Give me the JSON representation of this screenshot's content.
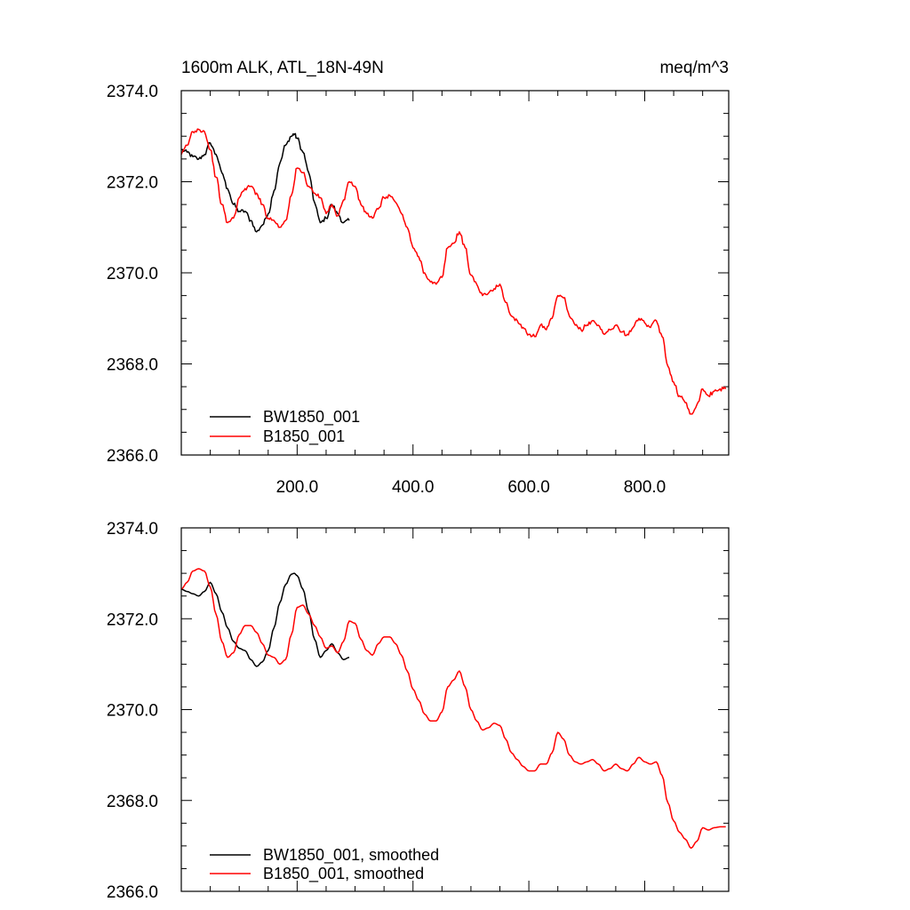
{
  "chart_data": [
    {
      "type": "line",
      "title": "1600m ALK, ATL_18N-49N",
      "units": "meq/m^3",
      "xlim": [
        0,
        945
      ],
      "ylim": [
        2366.0,
        2374.0
      ],
      "xticks": [
        200,
        400,
        600,
        800
      ],
      "xtick_labels": [
        "200.0",
        "400.0",
        "600.0",
        "800.0"
      ],
      "yticks": [
        2366,
        2368,
        2370,
        2372,
        2374
      ],
      "ytick_labels": [
        "2366.0",
        "2368.0",
        "2370.0",
        "2372.0",
        "2374.0"
      ],
      "show_x_labels": true,
      "noise": true,
      "legend_position": "bottom-left",
      "series": [
        {
          "name": "BW1850_001",
          "color": "#000000",
          "x": [
            0,
            10,
            20,
            30,
            40,
            50,
            60,
            70,
            80,
            90,
            100,
            110,
            120,
            130,
            140,
            150,
            160,
            170,
            180,
            190,
            195,
            200,
            210,
            220,
            230,
            240,
            250,
            260,
            270,
            280,
            290
          ],
          "values": [
            2372.7,
            2372.65,
            2372.55,
            2372.5,
            2372.6,
            2372.85,
            2372.6,
            2372.2,
            2371.85,
            2371.5,
            2371.35,
            2371.35,
            2371.15,
            2370.9,
            2371.05,
            2371.3,
            2371.8,
            2372.4,
            2372.8,
            2373.0,
            2373.05,
            2372.95,
            2372.65,
            2372.2,
            2371.55,
            2371.1,
            2371.2,
            2371.5,
            2371.3,
            2371.1,
            2371.15
          ]
        },
        {
          "name": "B1850_001",
          "color": "#ff0000",
          "x": [
            0,
            10,
            20,
            30,
            40,
            50,
            60,
            70,
            80,
            90,
            100,
            110,
            120,
            130,
            140,
            150,
            160,
            170,
            180,
            190,
            200,
            210,
            220,
            230,
            240,
            250,
            260,
            270,
            280,
            290,
            300,
            310,
            320,
            330,
            340,
            350,
            360,
            370,
            380,
            390,
            400,
            410,
            420,
            430,
            440,
            450,
            460,
            470,
            480,
            490,
            500,
            510,
            520,
            530,
            540,
            550,
            560,
            570,
            580,
            590,
            600,
            610,
            620,
            630,
            640,
            650,
            660,
            670,
            680,
            690,
            700,
            710,
            720,
            730,
            740,
            750,
            760,
            770,
            780,
            790,
            800,
            810,
            820,
            830,
            840,
            850,
            860,
            870,
            880,
            890,
            900,
            910,
            920,
            930,
            940
          ],
          "values": [
            2372.6,
            2372.8,
            2373.1,
            2373.15,
            2373.1,
            2372.7,
            2372.1,
            2371.5,
            2371.1,
            2371.2,
            2371.65,
            2371.85,
            2371.9,
            2371.75,
            2371.5,
            2371.2,
            2371.15,
            2371.0,
            2371.15,
            2371.7,
            2372.3,
            2372.2,
            2371.9,
            2371.75,
            2371.65,
            2371.3,
            2371.5,
            2371.25,
            2371.6,
            2372.0,
            2371.9,
            2371.5,
            2371.3,
            2371.2,
            2371.4,
            2371.65,
            2371.7,
            2371.55,
            2371.3,
            2371.0,
            2370.55,
            2370.35,
            2370.0,
            2369.8,
            2369.75,
            2369.9,
            2370.55,
            2370.65,
            2370.9,
            2370.55,
            2369.95,
            2369.75,
            2369.5,
            2369.55,
            2369.65,
            2369.75,
            2369.35,
            2369.05,
            2368.95,
            2368.8,
            2368.65,
            2368.6,
            2368.85,
            2368.75,
            2369.0,
            2369.5,
            2369.45,
            2369.05,
            2368.85,
            2368.75,
            2368.85,
            2368.95,
            2368.85,
            2368.65,
            2368.75,
            2368.85,
            2368.7,
            2368.65,
            2368.8,
            2369.0,
            2368.9,
            2368.8,
            2368.95,
            2368.6,
            2367.95,
            2367.6,
            2367.3,
            2367.15,
            2366.9,
            2367.1,
            2367.45,
            2367.3,
            2367.4,
            2367.45,
            2367.45
          ]
        }
      ]
    },
    {
      "type": "line",
      "title": "",
      "xlim": [
        0,
        945
      ],
      "ylim": [
        2366.0,
        2374.0
      ],
      "xticks": [
        200,
        400,
        600,
        800
      ],
      "xtick_labels": [],
      "yticks": [
        2366,
        2368,
        2370,
        2372,
        2374
      ],
      "ytick_labels": [
        "2366.0",
        "2368.0",
        "2370.0",
        "2372.0",
        "2374.0"
      ],
      "show_x_labels": false,
      "noise": false,
      "legend_position": "bottom-left",
      "series": [
        {
          "name": "BW1850_001, smoothed",
          "color": "#000000",
          "x": [
            0,
            10,
            20,
            30,
            40,
            50,
            60,
            70,
            80,
            90,
            100,
            110,
            120,
            130,
            140,
            150,
            160,
            170,
            180,
            190,
            195,
            200,
            210,
            220,
            230,
            240,
            250,
            260,
            270,
            280,
            290
          ],
          "values": [
            2372.65,
            2372.6,
            2372.55,
            2372.5,
            2372.6,
            2372.8,
            2372.55,
            2372.15,
            2371.8,
            2371.5,
            2371.35,
            2371.3,
            2371.1,
            2370.95,
            2371.05,
            2371.3,
            2371.8,
            2372.35,
            2372.75,
            2372.98,
            2373.0,
            2372.95,
            2372.65,
            2372.15,
            2371.55,
            2371.15,
            2371.3,
            2371.45,
            2371.25,
            2371.1,
            2371.15
          ]
        },
        {
          "name": "B1850_001, smoothed",
          "color": "#ff0000",
          "x": [
            0,
            10,
            20,
            30,
            40,
            50,
            60,
            70,
            80,
            90,
            100,
            110,
            120,
            130,
            140,
            150,
            160,
            170,
            180,
            190,
            200,
            210,
            220,
            230,
            240,
            250,
            260,
            270,
            280,
            290,
            300,
            310,
            320,
            330,
            340,
            350,
            360,
            370,
            380,
            390,
            400,
            410,
            420,
            430,
            440,
            450,
            460,
            470,
            480,
            490,
            500,
            510,
            520,
            530,
            540,
            550,
            560,
            570,
            580,
            590,
            600,
            610,
            620,
            630,
            640,
            650,
            660,
            670,
            680,
            690,
            700,
            710,
            720,
            730,
            740,
            750,
            760,
            770,
            780,
            790,
            800,
            810,
            820,
            830,
            840,
            850,
            860,
            870,
            880,
            890,
            900,
            910,
            920,
            930,
            940
          ],
          "values": [
            2372.65,
            2372.8,
            2373.05,
            2373.1,
            2373.05,
            2372.7,
            2372.1,
            2371.5,
            2371.15,
            2371.25,
            2371.65,
            2371.85,
            2371.85,
            2371.7,
            2371.45,
            2371.2,
            2371.15,
            2371.0,
            2371.1,
            2371.65,
            2372.25,
            2372.3,
            2372.1,
            2371.85,
            2371.6,
            2371.35,
            2371.4,
            2371.25,
            2371.5,
            2371.95,
            2371.9,
            2371.55,
            2371.3,
            2371.2,
            2371.45,
            2371.6,
            2371.6,
            2371.45,
            2371.2,
            2370.85,
            2370.45,
            2370.2,
            2369.9,
            2369.75,
            2369.75,
            2369.95,
            2370.5,
            2370.65,
            2370.85,
            2370.5,
            2370.0,
            2369.75,
            2369.55,
            2369.6,
            2369.7,
            2369.65,
            2369.35,
            2369.05,
            2368.9,
            2368.75,
            2368.65,
            2368.65,
            2368.8,
            2368.8,
            2369.05,
            2369.5,
            2369.35,
            2369.0,
            2368.85,
            2368.8,
            2368.85,
            2368.9,
            2368.8,
            2368.65,
            2368.7,
            2368.8,
            2368.7,
            2368.65,
            2368.8,
            2368.95,
            2368.85,
            2368.8,
            2368.85,
            2368.55,
            2367.95,
            2367.55,
            2367.3,
            2367.15,
            2366.95,
            2367.1,
            2367.4,
            2367.35,
            2367.4,
            2367.42,
            2367.42
          ]
        }
      ]
    }
  ]
}
